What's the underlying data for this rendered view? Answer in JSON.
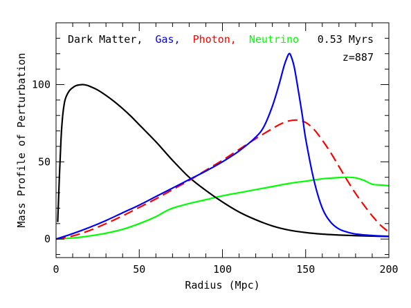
{
  "chart_data": {
    "type": "line",
    "title": "",
    "xlabel": "Radius (Mpc)",
    "ylabel": "Mass Profile of Perturbation",
    "xlim": [
      0,
      200
    ],
    "ylim": [
      -12,
      140
    ],
    "xticks": [
      0,
      50,
      100,
      150,
      200
    ],
    "yticks": [
      0,
      50,
      100
    ],
    "xtick_labels": [
      "0",
      "50",
      "100",
      "150",
      "200"
    ],
    "ytick_labels": [
      "0",
      "50",
      "100"
    ],
    "grid": false,
    "legend_position": "top-left",
    "annotations": [
      "0.53 Myrs",
      "z=887"
    ],
    "series": [
      {
        "name": "Dark Matter",
        "color": "#000000",
        "dash": "solid",
        "legend_text": "Dark Matter,",
        "x": [
          1,
          2,
          3,
          4,
          5,
          6,
          8,
          10,
          12,
          14,
          16,
          18,
          20,
          25,
          30,
          35,
          40,
          45,
          50,
          60,
          70,
          80,
          90,
          100,
          110,
          120,
          130,
          140,
          150,
          160,
          170,
          180,
          190,
          200
        ],
        "y": [
          11,
          40,
          65,
          80,
          88,
          92,
          96,
          98,
          99.3,
          99.8,
          100,
          99.7,
          99,
          96.5,
          93,
          89,
          84.5,
          79.5,
          74,
          63,
          51,
          40,
          31.5,
          24,
          17.5,
          12.5,
          8.5,
          5.8,
          4.2,
          3.2,
          2.6,
          2.2,
          1.9,
          1.7
        ]
      },
      {
        "name": "Gas",
        "color": "#0000ff",
        "dash": "solid",
        "legend_text": "Gas,",
        "x": [
          0,
          10,
          20,
          30,
          40,
          50,
          60,
          70,
          80,
          90,
          100,
          110,
          120,
          125,
          130,
          134,
          137,
          139,
          140,
          141,
          143,
          145,
          148,
          150,
          155,
          160,
          165,
          170,
          175,
          180,
          190,
          200
        ],
        "y": [
          0,
          3.5,
          7.5,
          12,
          17,
          22,
          27.5,
          33,
          38.5,
          44,
          50,
          57,
          66,
          73,
          86,
          100,
          112,
          118,
          120,
          119,
          112,
          100,
          80,
          65,
          38,
          20,
          11,
          6.5,
          4.5,
          3.3,
          2.3,
          1.8
        ]
      },
      {
        "name": "Photon",
        "color": "#ff0000",
        "dash": "dashed",
        "legend_text": "Photon,",
        "x": [
          0,
          10,
          20,
          30,
          40,
          50,
          60,
          70,
          80,
          90,
          100,
          110,
          120,
          130,
          135,
          140,
          145,
          150,
          155,
          160,
          165,
          170,
          175,
          180,
          185,
          190,
          195,
          200
        ],
        "y": [
          0,
          2,
          5.5,
          10,
          15,
          20.5,
          26,
          32,
          38,
          44.5,
          51,
          58,
          65,
          71.5,
          74.5,
          76.5,
          77,
          75.5,
          71,
          64,
          56,
          47,
          38,
          29.5,
          22,
          15,
          9,
          4.5
        ]
      },
      {
        "name": "Neutrino",
        "color": "#00ff00",
        "dash": "solid",
        "legend_text": "Neutrino",
        "x": [
          0,
          10,
          20,
          30,
          40,
          50,
          60,
          65,
          70,
          80,
          90,
          100,
          110,
          120,
          130,
          140,
          150,
          160,
          170,
          175,
          180,
          185,
          190,
          195,
          200
        ],
        "y": [
          0,
          0.7,
          2,
          3.8,
          6.3,
          10,
          14.5,
          17.5,
          20,
          23,
          25.5,
          28,
          30,
          32,
          34,
          36,
          37.5,
          39,
          39.8,
          40,
          39.6,
          38,
          35.5,
          35,
          34.5
        ]
      }
    ]
  }
}
